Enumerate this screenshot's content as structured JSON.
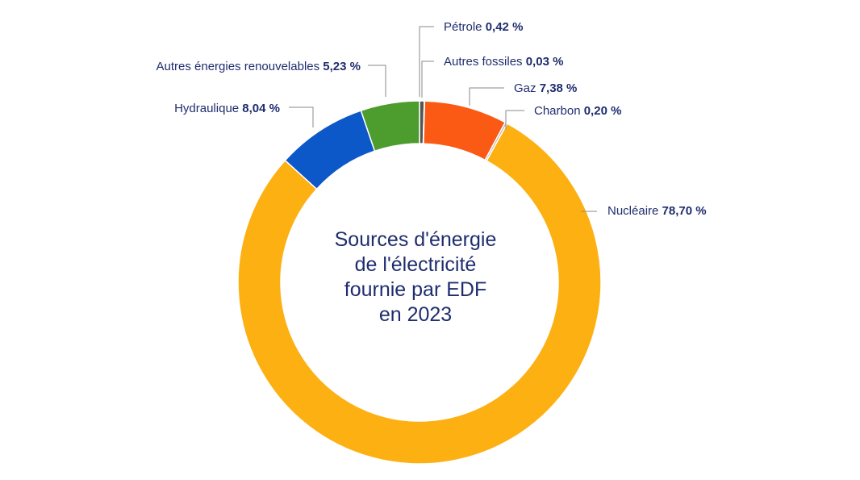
{
  "chart_data": {
    "type": "pie",
    "variant": "donut",
    "title_lines": [
      "Sources d'énergie",
      "de l'électricité",
      "fournie par EDF",
      "en 2023"
    ],
    "legend": "none",
    "slices": [
      {
        "name": "Pétrole",
        "value_label": "0,42 %",
        "value": 0.42,
        "color": "#555555"
      },
      {
        "name": "Autres fossiles",
        "value_label": "0,03 %",
        "value": 0.03,
        "color": "#7a3b2e"
      },
      {
        "name": "Gaz",
        "value_label": "7,38 %",
        "value": 7.38,
        "color": "#fa5a14"
      },
      {
        "name": "Charbon",
        "value_label": "0,20 %",
        "value": 0.2,
        "color": "#b4b4b4"
      },
      {
        "name": "Nucléaire",
        "value_label": "78,70 %",
        "value": 78.7,
        "color": "#fdb012"
      },
      {
        "name": "Hydraulique",
        "value_label": "8,04 %",
        "value": 8.04,
        "color": "#0d58c8"
      },
      {
        "name": "Autres énergies renouvelables",
        "value_label": "5,23 %",
        "value": 5.23,
        "color": "#4c9c2e"
      }
    ]
  }
}
